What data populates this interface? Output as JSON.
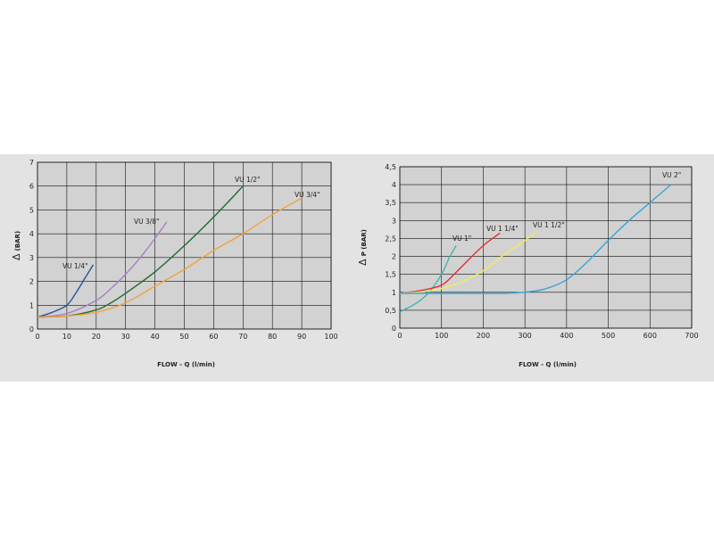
{
  "chart_data": [
    {
      "type": "line",
      "xlabel": "FLOW - Q (l/min)",
      "ylabel": "(BAR)",
      "ysymbol": "Δ",
      "xlim": [
        0,
        100
      ],
      "ylim": [
        0,
        7
      ],
      "xticks": [
        "0",
        "10",
        "20",
        "30",
        "40",
        "50",
        "60",
        "70",
        "80",
        "90",
        "100"
      ],
      "yticks": [
        "0",
        "1",
        "2",
        "3",
        "4",
        "5",
        "6",
        "7"
      ],
      "grid": true,
      "series": [
        {
          "name": "VU 1/4\"",
          "color": "#2c4e9e",
          "x": [
            0,
            5,
            10,
            13,
            16,
            19
          ],
          "y": [
            0.5,
            0.7,
            1.0,
            1.5,
            2.1,
            2.7
          ]
        },
        {
          "name": "VU 3/8\"",
          "color": "#a77fc4",
          "x": [
            0,
            10,
            20,
            25,
            30,
            35,
            40,
            44
          ],
          "y": [
            0.5,
            0.65,
            1.2,
            1.7,
            2.3,
            3.0,
            3.8,
            4.5
          ]
        },
        {
          "name": "VU 1/2\"",
          "color": "#1e6b2e",
          "x": [
            0,
            10,
            20,
            25,
            30,
            40,
            50,
            60,
            70
          ],
          "y": [
            0.5,
            0.55,
            0.8,
            1.1,
            1.5,
            2.4,
            3.5,
            4.7,
            6.0
          ]
        },
        {
          "name": "VU 3/4\"",
          "color": "#f5a03a",
          "x": [
            0,
            10,
            20,
            30,
            40,
            50,
            60,
            70,
            80,
            90
          ],
          "y": [
            0.5,
            0.55,
            0.7,
            1.1,
            1.8,
            2.5,
            3.3,
            4.0,
            4.8,
            5.5
          ]
        }
      ]
    },
    {
      "type": "line",
      "xlabel": "FLOW - Q (l/min)",
      "ylabel": "P (BAR)",
      "ysymbol": "Δ",
      "xlim": [
        0,
        700
      ],
      "ylim": [
        0,
        4.5
      ],
      "xticks": [
        "0",
        "100",
        "200",
        "300",
        "400",
        "500",
        "600",
        "700"
      ],
      "yticks": [
        "0",
        "0,5",
        "1",
        "1,5",
        "2",
        "2,5",
        "3",
        "3,5",
        "4",
        "4,5"
      ],
      "grid": true,
      "series": [
        {
          "name": "VU 1\"",
          "color": "#3fb5a8",
          "x": [
            0,
            40,
            70,
            100,
            120,
            135
          ],
          "y": [
            0.45,
            0.7,
            1.0,
            1.5,
            2.0,
            2.3
          ]
        },
        {
          "name": "VU 1 1/4\"",
          "color": "#e33030",
          "x": [
            0,
            50,
            100,
            130,
            160,
            200,
            240
          ],
          "y": [
            0.97,
            1.05,
            1.2,
            1.5,
            1.85,
            2.3,
            2.65
          ]
        },
        {
          "name": "VU 1 1/2\"",
          "color": "#f2ec5a",
          "x": [
            0,
            80,
            150,
            200,
            250,
            300,
            330
          ],
          "y": [
            0.97,
            1.05,
            1.3,
            1.6,
            2.05,
            2.45,
            2.7
          ]
        },
        {
          "name": "VU 2\"",
          "color": "#3aa3d8",
          "x": [
            0,
            150,
            250,
            300,
            350,
            400,
            450,
            500,
            550,
            600,
            650
          ],
          "y": [
            0.97,
            0.97,
            0.97,
            1.0,
            1.1,
            1.35,
            1.85,
            2.45,
            3.0,
            3.5,
            4.0
          ]
        }
      ]
    }
  ]
}
